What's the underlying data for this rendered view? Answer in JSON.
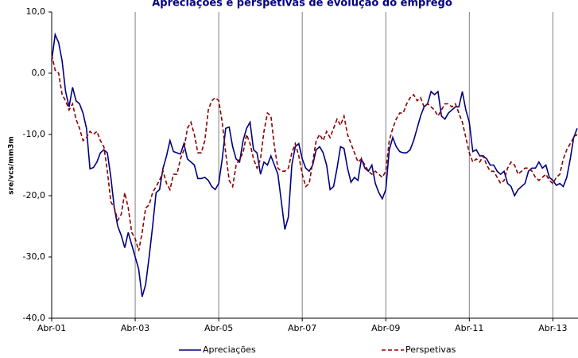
{
  "chart_data": {
    "type": "line",
    "title": "Apreciações e perspetivas de evolução do emprego",
    "y_label": "sre/vcs/mm3m",
    "categories": [
      "Abr-01",
      null,
      null,
      null,
      null,
      null,
      null,
      null,
      null,
      null,
      null,
      null,
      null,
      null,
      null,
      null,
      null,
      null,
      null,
      null,
      null,
      null,
      null,
      null,
      "Abr-03",
      null,
      null,
      null,
      null,
      null,
      null,
      null,
      null,
      null,
      null,
      null,
      null,
      null,
      null,
      null,
      null,
      null,
      null,
      null,
      null,
      null,
      null,
      null,
      "Abr-05",
      null,
      null,
      null,
      null,
      null,
      null,
      null,
      null,
      null,
      null,
      null,
      null,
      null,
      null,
      null,
      null,
      null,
      null,
      null,
      null,
      null,
      null,
      null,
      "Abr-07",
      null,
      null,
      null,
      null,
      null,
      null,
      null,
      null,
      null,
      null,
      null,
      null,
      null,
      null,
      null,
      null,
      null,
      null,
      null,
      null,
      null,
      null,
      null,
      "Abr-09",
      null,
      null,
      null,
      null,
      null,
      null,
      null,
      null,
      null,
      null,
      null,
      null,
      null,
      null,
      null,
      null,
      null,
      null,
      null,
      null,
      null,
      null,
      null,
      "Abr-11",
      null,
      null,
      null,
      null,
      null,
      null,
      null,
      null,
      null,
      null,
      null,
      null,
      null,
      null,
      null,
      null,
      null,
      null,
      null,
      null,
      null,
      null,
      null,
      "Abr-13",
      null,
      null,
      null,
      null,
      null,
      null,
      null
    ],
    "series": [
      {
        "name": "Apreciações",
        "color": "#000080",
        "dash": false,
        "values": [
          2,
          6.3,
          5,
          2,
          -3,
          -5.5,
          -2.3,
          -4.5,
          -5,
          -6.5,
          -9,
          -15.6,
          -15.4,
          -14.5,
          -13,
          -12.5,
          -13,
          -17,
          -22,
          -25,
          -26.5,
          -28.5,
          -26,
          -28,
          -30,
          -32,
          -36.5,
          -34.5,
          -30,
          -25,
          -19.5,
          -19,
          -15.5,
          -13.5,
          -11,
          -12.8,
          -13,
          -13.2,
          -11.5,
          -14,
          -14.5,
          -15,
          -17.2,
          -17.2,
          -17,
          -17.5,
          -18.5,
          -19,
          -18,
          -14,
          -9,
          -8.8,
          -12,
          -14,
          -14.5,
          -11,
          -9,
          -8,
          -12.5,
          -13,
          -16.5,
          -14.5,
          -15,
          -13.5,
          -15,
          -16.5,
          -21,
          -25.5,
          -23.5,
          -15,
          -12,
          -11.5,
          -14,
          -15.5,
          -16,
          -15,
          -12.5,
          -12,
          -13,
          -15,
          -19,
          -18.5,
          -15.5,
          -12,
          -12.3,
          -15.5,
          -17.8,
          -17,
          -17.5,
          -14,
          -15.5,
          -16,
          -15,
          -18,
          -19.5,
          -20.5,
          -19,
          -12.5,
          -10.5,
          -12,
          -12.8,
          -13,
          -13,
          -12.5,
          -11,
          -9,
          -7,
          -5.5,
          -5,
          -3,
          -3.5,
          -3,
          -7,
          -7.5,
          -6.5,
          -6,
          -5.5,
          -5.5,
          -3,
          -6,
          -8,
          -12.8,
          -12.5,
          -13.5,
          -13.5,
          -14,
          -15,
          -15,
          -16,
          -16.5,
          -16,
          -18,
          -18.5,
          -20,
          -19,
          -18.5,
          -18,
          -16,
          -15.5,
          -15.5,
          -14.5,
          -15.5,
          -15,
          -17,
          -17.5,
          -18.3,
          -18,
          -18.5,
          -17,
          -14,
          -10.5,
          -9
        ]
      },
      {
        "name": "Perspetivas",
        "color": "#8b0000",
        "dash": true,
        "values": [
          3,
          0.5,
          0,
          -3.5,
          -4.5,
          -6,
          -5,
          -7.5,
          -9,
          -11,
          -10.5,
          -9.5,
          -10,
          -9.5,
          -11,
          -12,
          -16,
          -21,
          -22,
          -24,
          -23,
          -19.5,
          -22,
          -26,
          -27,
          -29,
          -26,
          -22,
          -21.5,
          -19.5,
          -18.5,
          -17.5,
          -16,
          -18,
          -19,
          -16.5,
          -16.5,
          -14,
          -12.5,
          -9,
          -8,
          -10,
          -13,
          -13,
          -11,
          -6,
          -4.5,
          -4,
          -4.5,
          -8,
          -13,
          -17.5,
          -18.5,
          -15,
          -14,
          -13,
          -10,
          -11.5,
          -14,
          -15.5,
          -14,
          -9.5,
          -6.5,
          -7,
          -12,
          -15.5,
          -16,
          -16,
          -15.5,
          -13,
          -11.5,
          -13.5,
          -16.5,
          -18.5,
          -18,
          -14.5,
          -11,
          -10,
          -11,
          -9.5,
          -10.5,
          -9,
          -7.5,
          -8.5,
          -7,
          -10,
          -11.5,
          -13,
          -14.5,
          -14,
          -15,
          -16,
          -16.5,
          -16,
          -16.5,
          -17,
          -16,
          -11,
          -9,
          -7.5,
          -6.5,
          -6.5,
          -5,
          -4,
          -3.5,
          -4.5,
          -4,
          -5.5,
          -5,
          -5.5,
          -6,
          -7,
          -6,
          -5,
          -5,
          -5.5,
          -5,
          -6.5,
          -8,
          -10.5,
          -13,
          -14.5,
          -14,
          -14.5,
          -13.5,
          -15,
          -16,
          -16,
          -17,
          -18,
          -17.5,
          -15.5,
          -14.5,
          -15,
          -16.5,
          -16,
          -15.5,
          -15.5,
          -16,
          -17,
          -17.5,
          -17,
          -16.5,
          -17.5,
          -18,
          -17,
          -16.5,
          -14,
          -12.5,
          -11.5,
          -10.5,
          -10
        ]
      }
    ],
    "ylim": [
      -40,
      10
    ],
    "yticks": [
      {
        "value": -40,
        "label": "-40,0"
      },
      {
        "value": -30,
        "label": "-30,0"
      },
      {
        "value": -20,
        "label": "-20,0"
      },
      {
        "value": -10,
        "label": "-10,0"
      },
      {
        "value": 0,
        "label": "0,0"
      },
      {
        "value": 10,
        "label": "10,0"
      }
    ],
    "x_grid": true,
    "legend": "bottom"
  }
}
